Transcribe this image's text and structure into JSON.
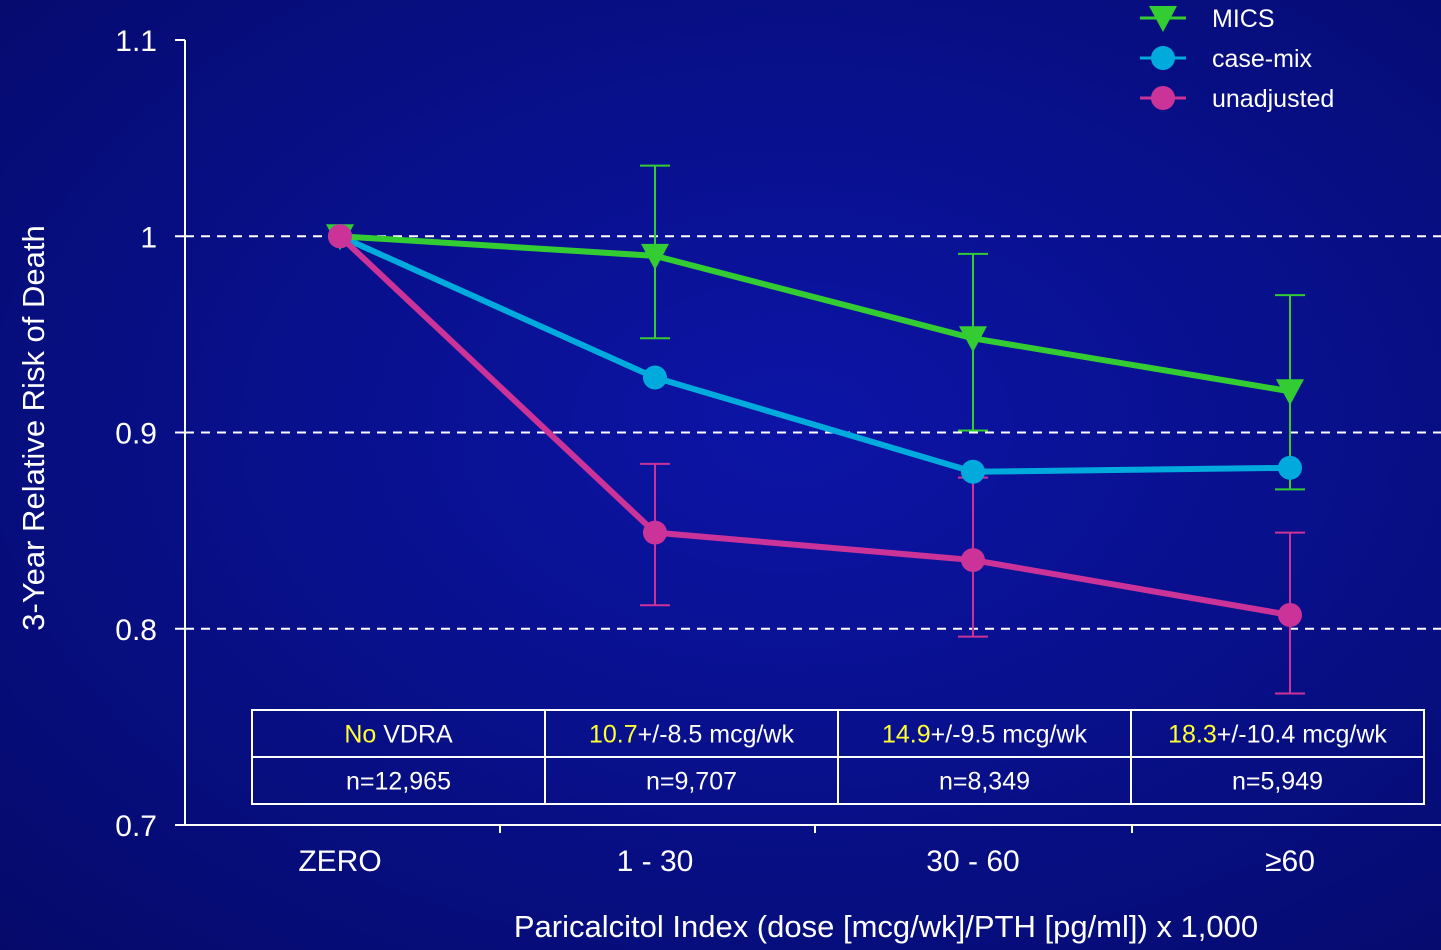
{
  "chart_data": {
    "type": "line",
    "title": "",
    "ylabel": "3-Year Relative Risk of Death",
    "xlabel": "Paricalcitol Index (dose [mcg/wk]/PTH [pg/ml]) x 1,000",
    "categories": [
      "ZERO",
      "1 - 30",
      "30 - 60",
      "≥60"
    ],
    "ylim": [
      0.7,
      1.1
    ],
    "yticks": [
      0.7,
      0.8,
      0.9,
      1,
      1.1
    ],
    "ytick_labels": [
      "0.7",
      "0.8",
      "0.9",
      "1",
      "1.1"
    ],
    "grid": {
      "dashed_y": [
        0.8,
        0.9,
        1.0
      ]
    },
    "legend_position": "top-right",
    "series": [
      {
        "name": "MICS",
        "color": "#33cc33",
        "marker": "triangle-down",
        "values": [
          1.0,
          0.99,
          0.948,
          0.921
        ],
        "error_low": [
          null,
          0.948,
          0.901,
          0.871
        ],
        "error_high": [
          null,
          1.036,
          0.991,
          0.97
        ]
      },
      {
        "name": "case-mix",
        "color": "#00aadd",
        "marker": "circle",
        "values": [
          1.0,
          0.928,
          0.88,
          0.882
        ],
        "error_low": [
          null,
          null,
          null,
          null
        ],
        "error_high": [
          null,
          null,
          null,
          null
        ]
      },
      {
        "name": "unadjusted",
        "color": "#cc3399",
        "marker": "circle",
        "values": [
          1.0,
          0.849,
          0.835,
          0.807
        ],
        "error_low": [
          null,
          0.812,
          0.796,
          0.767
        ],
        "error_high": [
          null,
          0.884,
          0.877,
          0.849
        ]
      }
    ],
    "table": {
      "rows": [
        [
          {
            "highlight": "No",
            "rest": " VDRA"
          },
          {
            "highlight": "10.7",
            "rest": "+/-8.5 mcg/wk"
          },
          {
            "highlight": "14.9",
            "rest": "+/-9.5 mcg/wk"
          },
          {
            "highlight": "18.3",
            "rest": "+/-10.4 mcg/wk"
          }
        ],
        [
          {
            "highlight": "",
            "rest": "n=12,965"
          },
          {
            "highlight": "",
            "rest": "n=9,707"
          },
          {
            "highlight": "",
            "rest": "n=8,349"
          },
          {
            "highlight": "",
            "rest": "n=5,949"
          }
        ]
      ],
      "highlight_color": "#ffff33"
    }
  }
}
